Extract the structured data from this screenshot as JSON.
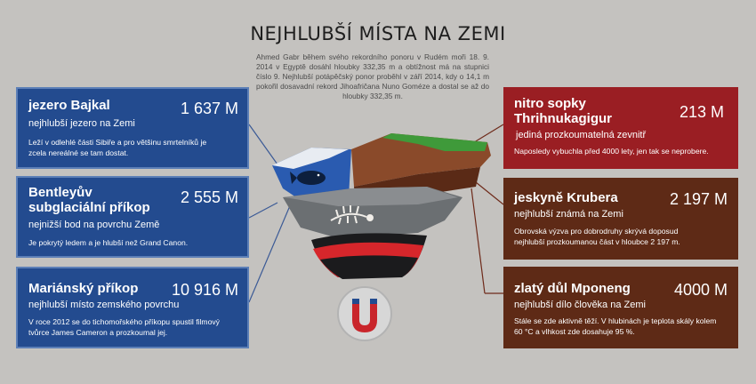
{
  "title": "NEJHLUBŠÍ MÍSTA NA ZEMI",
  "intro": "Ahmed Gabr během svého rekordního ponoru v Rudém moři 18. 9. 2014 v Egyptě dosáhl hloubky 332,35 m a obtížnost má na stupnici číslo 9. Nejhlubší potápěčský ponor proběhl v září 2014, kdy o 14,1 m pokořil dosavadní rekord Jihoafričana Nuno Goméze a dostal se až do hloubky 332,35 m.",
  "cards": {
    "bajkal": {
      "name": "jezero Bajkal",
      "value": "1 637 M",
      "subtitle": "nejhlubší jezero na Zemi",
      "desc": "Leží v odlehlé části Sibiře a pro většinu smrtelníků je zcela nereálné se tam dostat."
    },
    "bentley": {
      "name_line1": "Bentleyův",
      "name_line2": "subglaciální příkop",
      "value": "2 555 M",
      "subtitle": "nejnižší bod na povrchu Země",
      "desc": "Je pokrytý ledem a je hlubší než Grand Canon."
    },
    "mariana": {
      "name": "Mariánský příkop",
      "value": "10 916 M",
      "subtitle": "nejhlubší místo zemského povrchu",
      "desc": "V roce 2012 se do tichomořského příkopu spustil filmový tvůrce James Cameron a prozkoumal jej."
    },
    "thrihnu": {
      "name_line1": "nitro sopky",
      "name_line2": "Thrihnukagigur",
      "value": "213 M",
      "subtitle": "jediná prozkoumatelná zevnitř",
      "desc": "Naposledy vybuchla před 4000 lety, jen tak se neprobere."
    },
    "krubera": {
      "name": "jeskyně Krubera",
      "value": "2 197 M",
      "subtitle": "nejhlubší známá na Zemi",
      "desc": "Obrovská výzva pro dobrodruhy skrývá doposud nejhlubší prozkoumanou část v hloubce 2 197 m."
    },
    "mponeng": {
      "name": "zlatý důl Mponeng",
      "value": "4000 M",
      "subtitle": "nejhlubší dílo člověka na Zemi",
      "desc": "Stále se zde aktivně těží. V hlubinách je teplota skály kolem 60 °C a vlhkost zde dosahuje 95 %."
    }
  },
  "colors": {
    "background": "#c4c2bf",
    "blue_card": "#234b8f",
    "red_card": "#9a1e23",
    "brown_card": "#5e2a16",
    "water": "#2a5bb0",
    "grass": "#3f9a3a",
    "soil": "#8a4a2a",
    "rock": "#6b6f72",
    "magma": "#d6262b"
  },
  "icons": [
    "whale-icon",
    "fossil-icon",
    "magnet-icon"
  ]
}
